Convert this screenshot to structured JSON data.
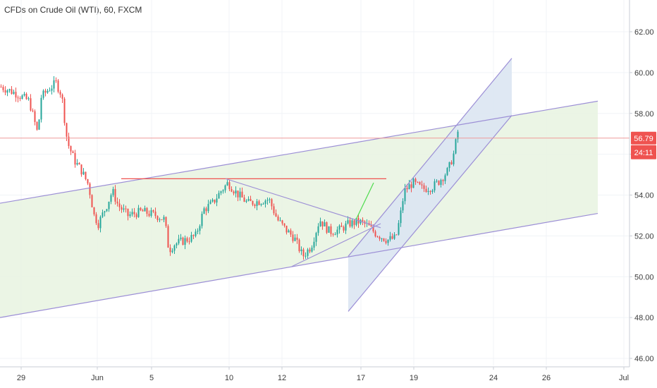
{
  "header": {
    "title": "CFDs on Crude Oil (WTI), 60, FXCM"
  },
  "colors": {
    "up": "#26a69a",
    "down": "#ef5350",
    "channel_fill": "#e9f4e2",
    "channel_line": "#9c8fd6",
    "steep_fill": "#dce6f2",
    "price_line": "#ef9a9a",
    "badge": "#ef5350",
    "resistance": "#ef5350"
  },
  "badges": {
    "price": "56.79",
    "countdown": "24:11"
  },
  "chart_data": {
    "type": "candlestick",
    "symbol": "CFDs on Crude Oil (WTI)",
    "interval": "60",
    "source": "FXCM",
    "x_ticks": [
      "29",
      "Jun",
      "5",
      "10",
      "12",
      "17",
      "19",
      "24",
      "26",
      "Jul"
    ],
    "y_ticks": [
      46,
      48,
      50,
      52,
      54,
      56,
      58,
      60,
      62
    ],
    "ylim": [
      45.8,
      63.8
    ],
    "last_price": 56.79,
    "countdown": "24:11",
    "anchors": [
      {
        "t": 0,
        "p": 59.3
      },
      {
        "t": 20,
        "p": 59.0
      },
      {
        "t": 40,
        "p": 58.6
      },
      {
        "t": 52,
        "p": 57.0
      },
      {
        "t": 57,
        "p": 58.8
      },
      {
        "t": 68,
        "p": 59.2
      },
      {
        "t": 78,
        "p": 59.5
      },
      {
        "t": 86,
        "p": 58.9
      },
      {
        "t": 94,
        "p": 56.6
      },
      {
        "t": 104,
        "p": 55.7
      },
      {
        "t": 114,
        "p": 55.2
      },
      {
        "t": 124,
        "p": 54.5
      },
      {
        "t": 132,
        "p": 53.0
      },
      {
        "t": 138,
        "p": 52.6
      },
      {
        "t": 150,
        "p": 53.5
      },
      {
        "t": 158,
        "p": 54.2
      },
      {
        "t": 166,
        "p": 53.5
      },
      {
        "t": 180,
        "p": 53.0
      },
      {
        "t": 200,
        "p": 53.2
      },
      {
        "t": 220,
        "p": 53.0
      },
      {
        "t": 232,
        "p": 52.8
      },
      {
        "t": 238,
        "p": 51.3
      },
      {
        "t": 246,
        "p": 51.6
      },
      {
        "t": 262,
        "p": 51.8
      },
      {
        "t": 276,
        "p": 52.0
      },
      {
        "t": 288,
        "p": 53.3
      },
      {
        "t": 300,
        "p": 53.6
      },
      {
        "t": 312,
        "p": 54.2
      },
      {
        "t": 322,
        "p": 54.6
      },
      {
        "t": 334,
        "p": 54.1
      },
      {
        "t": 350,
        "p": 53.6
      },
      {
        "t": 366,
        "p": 53.7
      },
      {
        "t": 380,
        "p": 53.8
      },
      {
        "t": 392,
        "p": 52.8
      },
      {
        "t": 404,
        "p": 52.3
      },
      {
        "t": 416,
        "p": 51.9
      },
      {
        "t": 428,
        "p": 51.0
      },
      {
        "t": 440,
        "p": 51.5
      },
      {
        "t": 452,
        "p": 52.8
      },
      {
        "t": 466,
        "p": 52.2
      },
      {
        "t": 480,
        "p": 52.3
      },
      {
        "t": 494,
        "p": 52.6
      },
      {
        "t": 508,
        "p": 52.7
      },
      {
        "t": 520,
        "p": 52.5
      },
      {
        "t": 532,
        "p": 52.1
      },
      {
        "t": 548,
        "p": 51.8
      },
      {
        "t": 560,
        "p": 51.9
      },
      {
        "t": 566,
        "p": 52.9
      },
      {
        "t": 572,
        "p": 54.2
      },
      {
        "t": 584,
        "p": 54.6
      },
      {
        "t": 598,
        "p": 54.3
      },
      {
        "t": 612,
        "p": 54.4
      },
      {
        "t": 622,
        "p": 54.7
      },
      {
        "t": 634,
        "p": 55.2
      },
      {
        "t": 642,
        "p": 56.0
      },
      {
        "t": 648,
        "p": 57.1
      }
    ],
    "drawings": {
      "main_channel": {
        "lower": [
          [
            0,
            48.0
          ],
          [
            848,
            53.1
          ]
        ],
        "upper": [
          [
            0,
            53.6
          ],
          [
            848,
            58.6
          ]
        ]
      },
      "steep_channel": {
        "lower": [
          [
            494,
            48.3
          ],
          [
            726,
            57.9
          ]
        ],
        "upper": [
          [
            494,
            51.0
          ],
          [
            726,
            60.7
          ]
        ]
      },
      "horizontal_resistance": [
        [
          172,
          54.8
        ],
        [
          548,
          54.8
        ]
      ],
      "triangle_upper": [
        [
          320,
          54.8
        ],
        [
          540,
          52.4
        ]
      ],
      "triangle_lower": [
        [
          414,
          50.5
        ],
        [
          540,
          52.6
        ]
      ],
      "green_projection": [
        [
          505,
          52.8
        ],
        [
          530,
          54.6
        ]
      ]
    }
  }
}
